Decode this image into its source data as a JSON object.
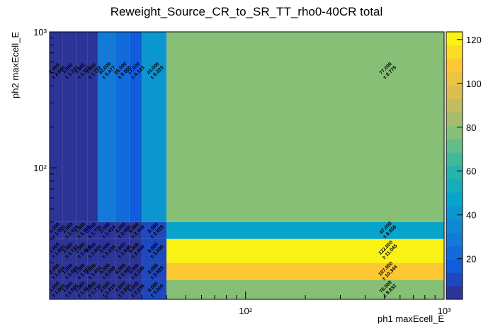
{
  "chart_data": {
    "type": "heatmap",
    "title": "Reweight_Source_CR_to_SR_TT_rho0-40CR total",
    "x_label": "ph1 maxEcell_E",
    "y_label": "ph2 maxEcell_E",
    "x_edges": [
      10.3,
      12,
      14,
      16,
      18,
      22,
      26,
      30,
      40,
      1000
    ],
    "y_edges": [
      10.8,
      15,
      20,
      30,
      40,
      1000
    ],
    "values": [
      [
        1,
        1,
        2,
        3,
        2,
        4,
        5,
        9,
        78
      ],
      [
        2,
        1,
        3,
        2,
        4,
        6,
        5,
        8,
        107
      ],
      [
        1,
        3,
        2,
        4,
        5,
        7,
        6,
        9,
        122
      ],
      [
        1,
        2,
        1,
        3,
        2,
        4,
        6,
        8,
        47
      ],
      [
        7,
        3,
        3,
        3,
        30,
        25,
        17,
        40,
        77
      ]
    ],
    "value_labels": [
      [
        "1.000",
        "1.000",
        "2.000",
        "3.000",
        "2.000",
        "4.000",
        "5.000",
        "9.000",
        "78.000"
      ],
      [
        "2.000",
        "1.000",
        "3.000",
        "2.000",
        "4.000",
        "6.000",
        "5.000",
        "8.000",
        "107.000"
      ],
      [
        "1.000",
        "3.000",
        "2.000",
        "4.000",
        "5.000",
        "7.000",
        "6.000",
        "9.000",
        "122.000"
      ],
      [
        "1.000",
        "2.000",
        "1.000",
        "3.000",
        "2.000",
        "4.000",
        "6.000",
        "8.000",
        "47.000"
      ],
      [
        "7.000",
        "3.000",
        "3.000",
        "3.000",
        "30.000",
        "25.000",
        "17.000",
        "40.000",
        "77.000"
      ]
    ],
    "errors": [
      [
        1.0,
        1.0,
        1.414,
        1.732,
        1.414,
        2.0,
        2.236,
        3.0,
        8.832
      ],
      [
        1.414,
        1.0,
        1.732,
        1.414,
        2.0,
        2.449,
        2.236,
        2.828,
        10.344
      ],
      [
        1.0,
        1.732,
        1.414,
        2.0,
        2.236,
        2.646,
        2.449,
        3.0,
        11.045
      ],
      [
        1.0,
        1.414,
        1.0,
        1.732,
        1.414,
        2.0,
        2.449,
        2.828,
        6.856
      ],
      [
        2.646,
        1.732,
        1.732,
        1.732,
        5.477,
        5.0,
        4.123,
        6.325,
        8.775
      ]
    ],
    "error_labels": [
      [
        "± 1.000",
        "± 1.000",
        "± 1.414",
        "± 1.732",
        "± 1.414",
        "± 2.000",
        "± 2.236",
        "± 3.000",
        "± 8.832"
      ],
      [
        "± 1.414",
        "± 1.000",
        "± 1.732",
        "± 1.414",
        "± 2.000",
        "± 2.449",
        "± 2.236",
        "± 2.828",
        "± 10.344"
      ],
      [
        "± 1.000",
        "± 1.732",
        "± 1.414",
        "± 2.000",
        "± 2.236",
        "± 2.646",
        "± 2.449",
        "± 3.000",
        "± 11.045"
      ],
      [
        "± 1.000",
        "± 1.414",
        "± 1.000",
        "± 1.732",
        "± 1.414",
        "± 2.000",
        "± 2.449",
        "± 2.828",
        "± 6.856"
      ],
      [
        "± 2.646",
        "± 1.732",
        "± 1.732",
        "± 1.732",
        "± 5.477",
        "± 5.000",
        "± 4.123",
        "± 6.325",
        "± 8.775"
      ]
    ],
    "xlim": [
      10.3,
      1000
    ],
    "ylim": [
      10.8,
      1000
    ],
    "xlog": true,
    "ylog": true,
    "xticks": [
      {
        "value": 100,
        "label": "10²"
      },
      {
        "value": 1000,
        "label": "10³"
      }
    ],
    "yticks": [
      {
        "value": 100,
        "label": "10²"
      },
      {
        "value": 1000,
        "label": "10³"
      }
    ],
    "xminorticks": [
      20,
      30,
      40,
      50,
      60,
      70,
      80,
      90,
      200,
      300,
      400,
      500,
      600,
      700,
      800,
      900
    ],
    "yminorticks": [
      20,
      30,
      40,
      50,
      60,
      70,
      80,
      90,
      200,
      300,
      400,
      500,
      600,
      700,
      800,
      900
    ],
    "zlim": [
      1.5,
      123.5
    ],
    "zticks": [
      20,
      40,
      60,
      80,
      100,
      120
    ],
    "palette_levels": 20,
    "palette": [
      "#352a87",
      "#0f5cdd",
      "#1481d6",
      "#06a4ca",
      "#2eb7a4",
      "#87bf77",
      "#d1bb59",
      "#fec832",
      "#f9fb0e"
    ]
  }
}
